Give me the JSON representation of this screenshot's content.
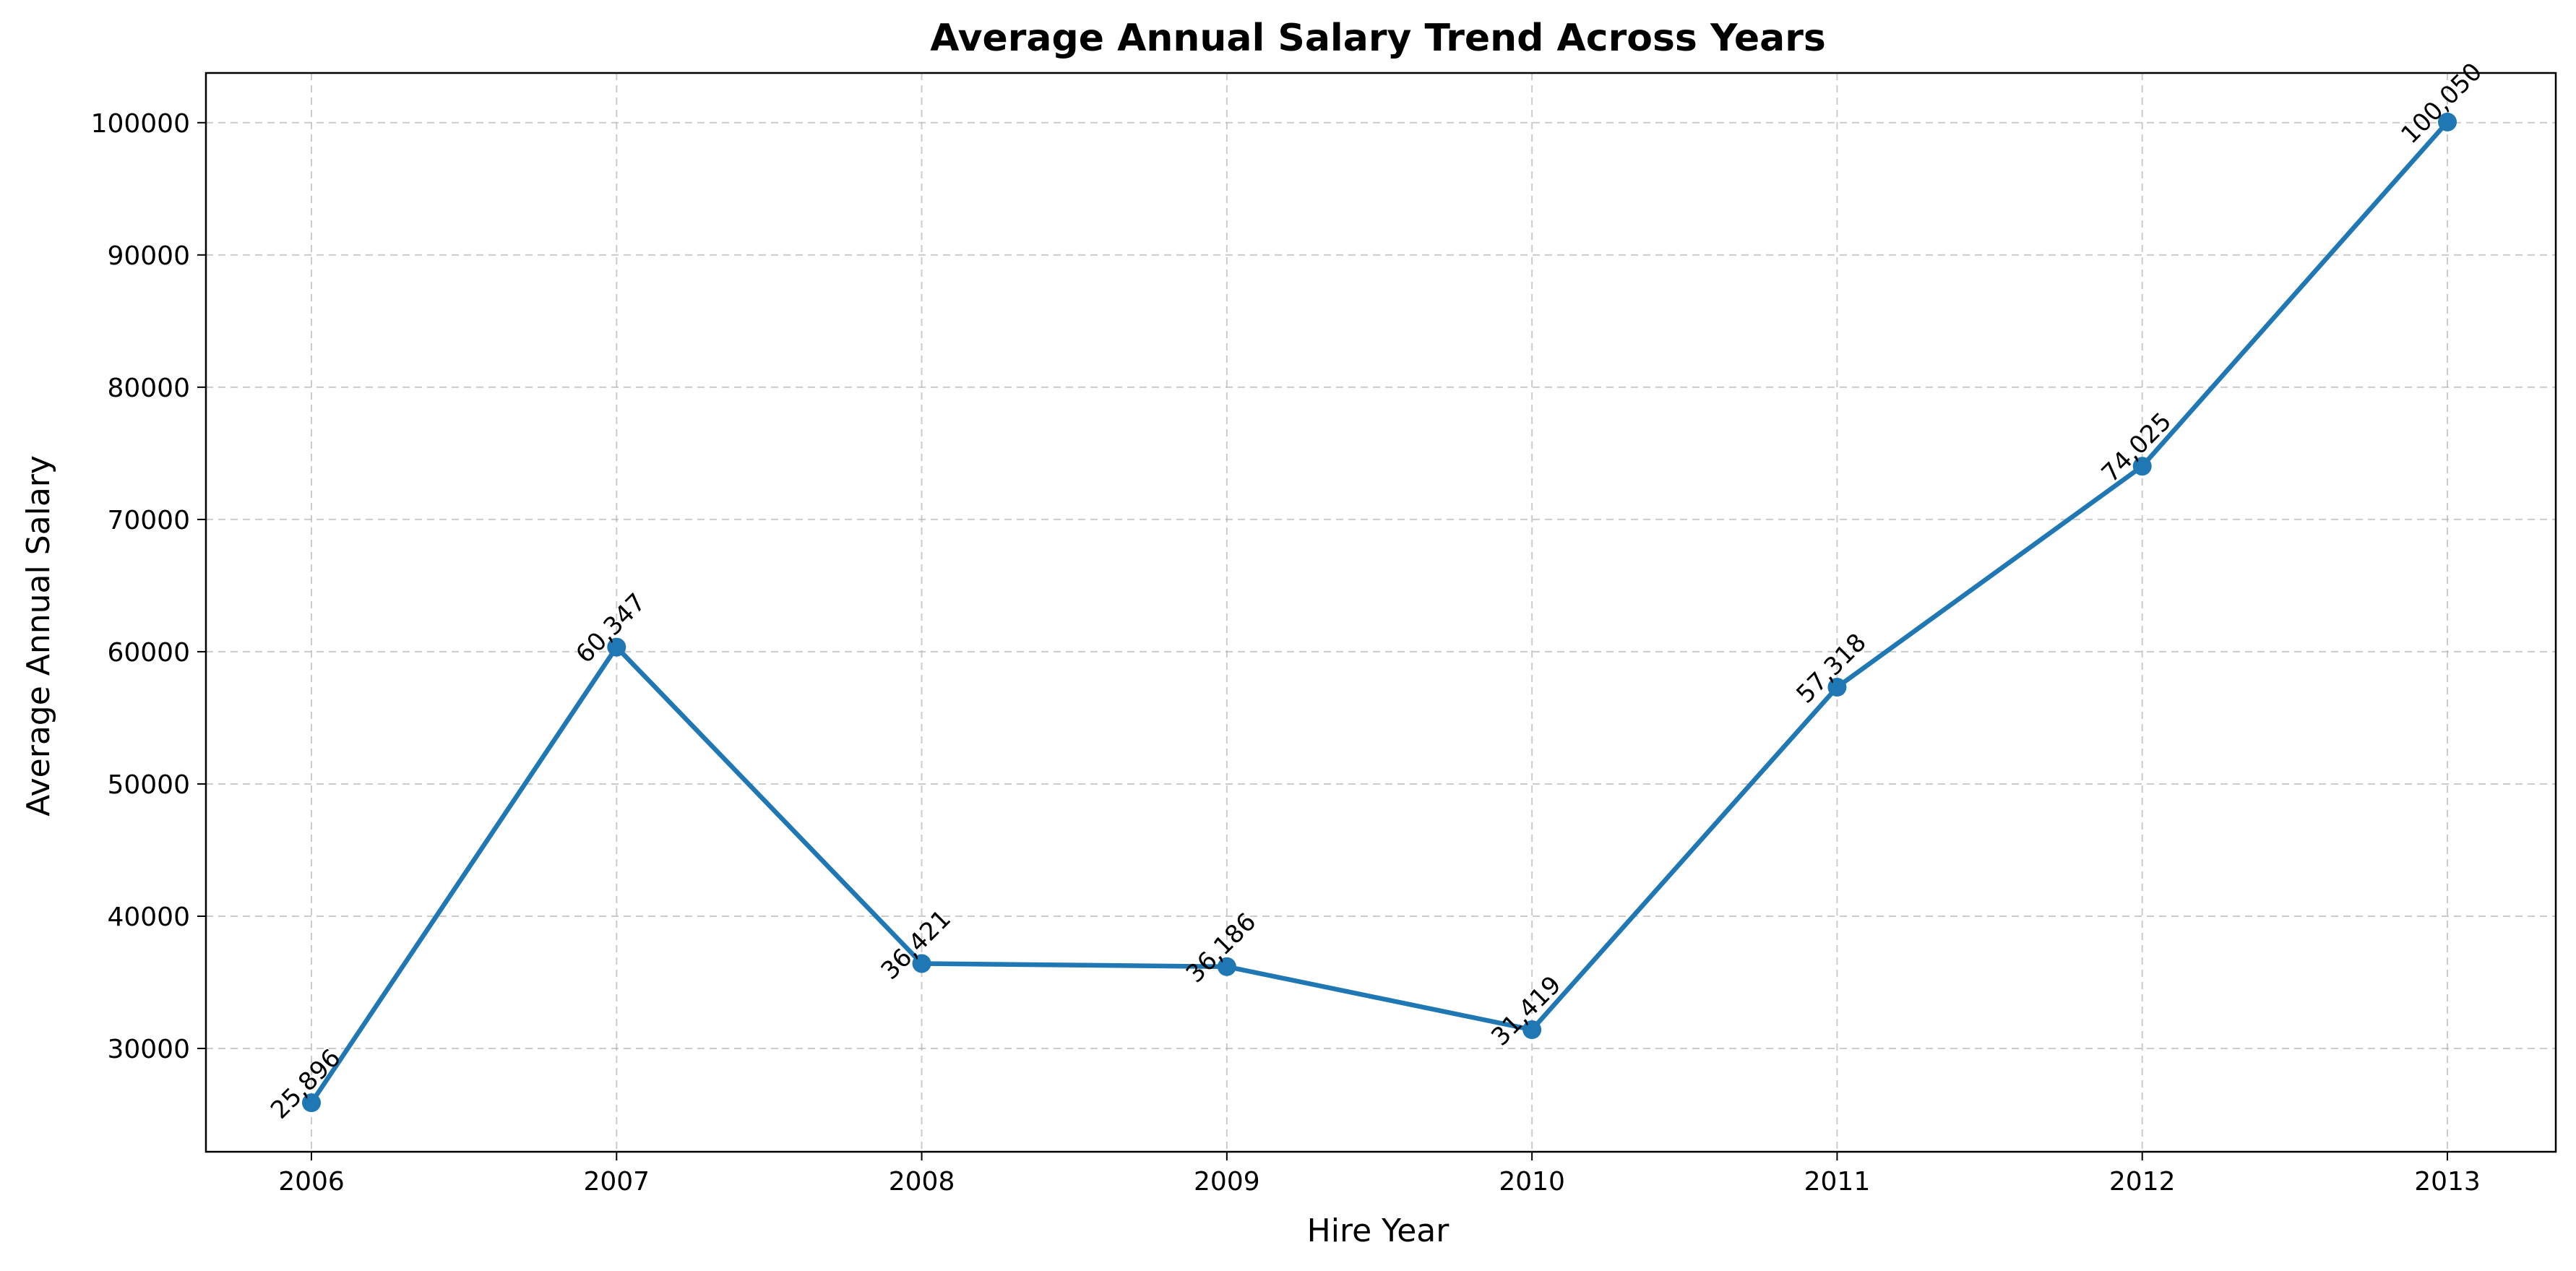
{
  "chart_data": {
    "type": "line",
    "title": "Average Annual Salary Trend Across Years",
    "xlabel": "Hire Year",
    "ylabel": "Average Annual Salary",
    "categories": [
      "2006",
      "2007",
      "2008",
      "2009",
      "2010",
      "2011",
      "2012",
      "2013"
    ],
    "series": [
      {
        "values": [
          25896,
          60347,
          36421,
          36186,
          31419,
          57318,
          74025,
          100050
        ],
        "data_labels": [
          "25,896",
          "60,347",
          "36,421",
          "36,186",
          "31,419",
          "57,318",
          "74,025",
          "100,050"
        ],
        "color": "#1f77b4"
      }
    ],
    "yticks": [
      30000,
      40000,
      50000,
      60000,
      70000,
      80000,
      90000,
      100000
    ],
    "ytick_labels": [
      "30000",
      "40000",
      "50000",
      "60000",
      "70000",
      "80000",
      "90000",
      "100000"
    ],
    "ylim": [
      22188,
      103758
    ],
    "grid": true,
    "marker": "circle"
  }
}
